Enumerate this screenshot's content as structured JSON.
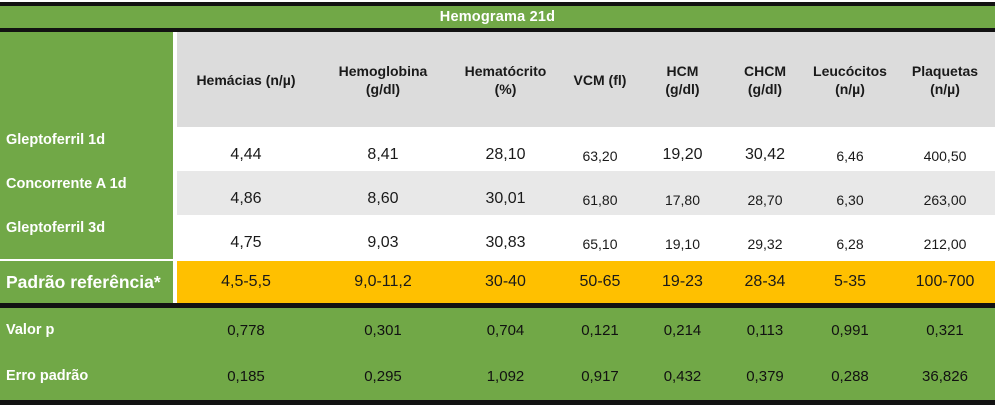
{
  "title": "Hemograma 21d",
  "colors": {
    "green": "#71A847",
    "orange": "#FFC000",
    "header-gray": "#DCDCDC",
    "row-gray": "#E8E8E8",
    "border-black": "#121212"
  },
  "columns": [
    {
      "line1": "Hemácias (n/µ)",
      "line2": ""
    },
    {
      "line1": "Hemoglobina",
      "line2": "(g/dl)"
    },
    {
      "line1": "Hematócrito",
      "line2": "(%)"
    },
    {
      "line1": "VCM (fl)",
      "line2": ""
    },
    {
      "line1": "HCM",
      "line2": "(g/dl)"
    },
    {
      "line1": "CHCM",
      "line2": "(g/dl)"
    },
    {
      "line1": "Leucócitos",
      "line2": "(n/µ)"
    },
    {
      "line1": "Plaquetas",
      "line2": "(n/µ)"
    }
  ],
  "rows": [
    {
      "label": "Gleptoferril 1d",
      "values": [
        "4,44",
        "8,41",
        "28,10",
        "63,20",
        "19,20",
        "30,42",
        "6,46",
        "400,50"
      ]
    },
    {
      "label": "Concorrente A 1d",
      "values": [
        "4,86",
        "8,60",
        "30,01",
        "61,80",
        "17,80",
        "28,70",
        "6,30",
        "263,00"
      ]
    },
    {
      "label": "Gleptoferril 3d",
      "values": [
        "4,75",
        "9,03",
        "30,83",
        "65,10",
        "19,10",
        "29,32",
        "6,28",
        "212,00"
      ]
    },
    {
      "label": "Padrão referência*",
      "values": [
        "4,5-5,5",
        "9,0-11,2",
        "30-40",
        "50-65",
        "19-23",
        "28-34",
        "5-35",
        "100-700"
      ]
    }
  ],
  "stats_rows": [
    {
      "label": "Valor p",
      "values": [
        "0,778",
        "0,301",
        "0,704",
        "0,121",
        "0,214",
        "0,113",
        "0,991",
        "0,321"
      ]
    },
    {
      "label": "Erro padrão",
      "values": [
        "0,185",
        "0,295",
        "1,092",
        "0,917",
        "0,432",
        "0,379",
        "0,288",
        "36,826"
      ]
    }
  ]
}
